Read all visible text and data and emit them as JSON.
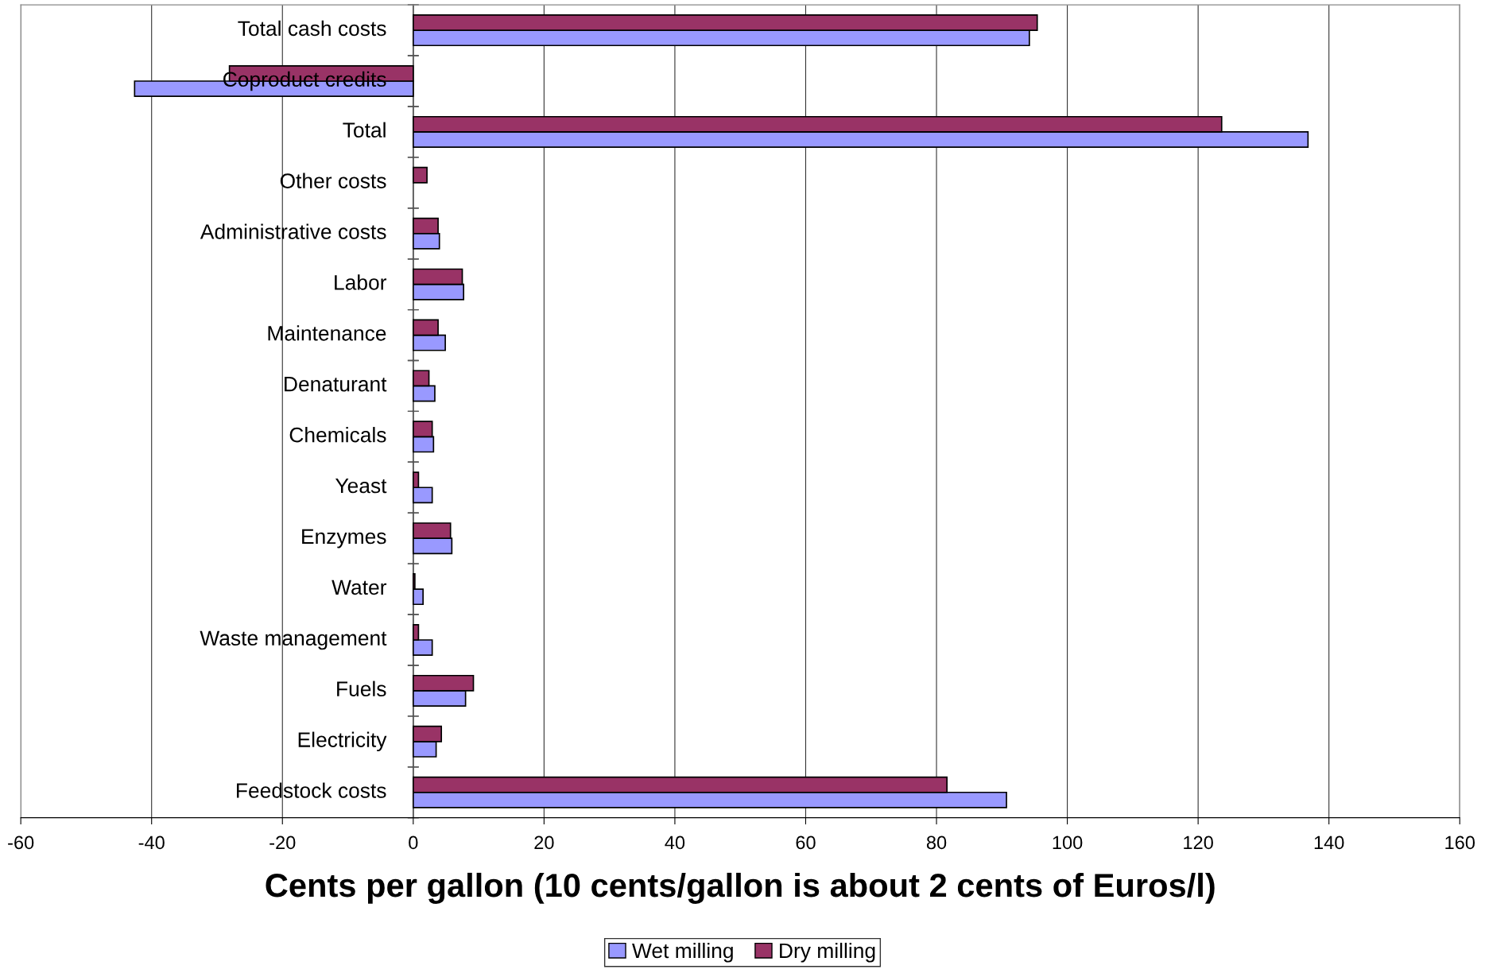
{
  "chart_data": {
    "type": "bar",
    "orientation": "horizontal",
    "xlabel": "Cents per gallon (10 cents/gallon is about 2 cents of Euros/l)",
    "categories": [
      "Total cash costs",
      "Coproduct credits",
      "Total",
      "Other costs",
      "Administrative costs",
      "Labor",
      "Maintenance",
      "Denaturant",
      "Chemicals",
      "Yeast",
      "Enzymes",
      "Water",
      "Waste management",
      "Fuels",
      "Electricity",
      "Feedstock costs"
    ],
    "series": [
      {
        "name": "Wet milling",
        "color": "#9999ff",
        "values": [
          94.2,
          -42.6,
          136.8,
          null,
          4.0,
          7.7,
          4.9,
          3.3,
          3.1,
          2.9,
          5.9,
          1.5,
          2.9,
          8.0,
          3.5,
          90.7
        ]
      },
      {
        "name": "Dry milling",
        "color": "#993366",
        "values": [
          95.4,
          -28.1,
          123.6,
          2.1,
          3.8,
          7.5,
          3.8,
          2.4,
          2.9,
          0.8,
          5.7,
          0.25,
          0.8,
          9.2,
          4.3,
          81.6
        ]
      }
    ],
    "xlim": [
      -60,
      160
    ],
    "xticks": [
      -60,
      -40,
      -20,
      0,
      20,
      40,
      60,
      80,
      100,
      120,
      140,
      160
    ],
    "grid": "x",
    "legend": "bottom"
  }
}
